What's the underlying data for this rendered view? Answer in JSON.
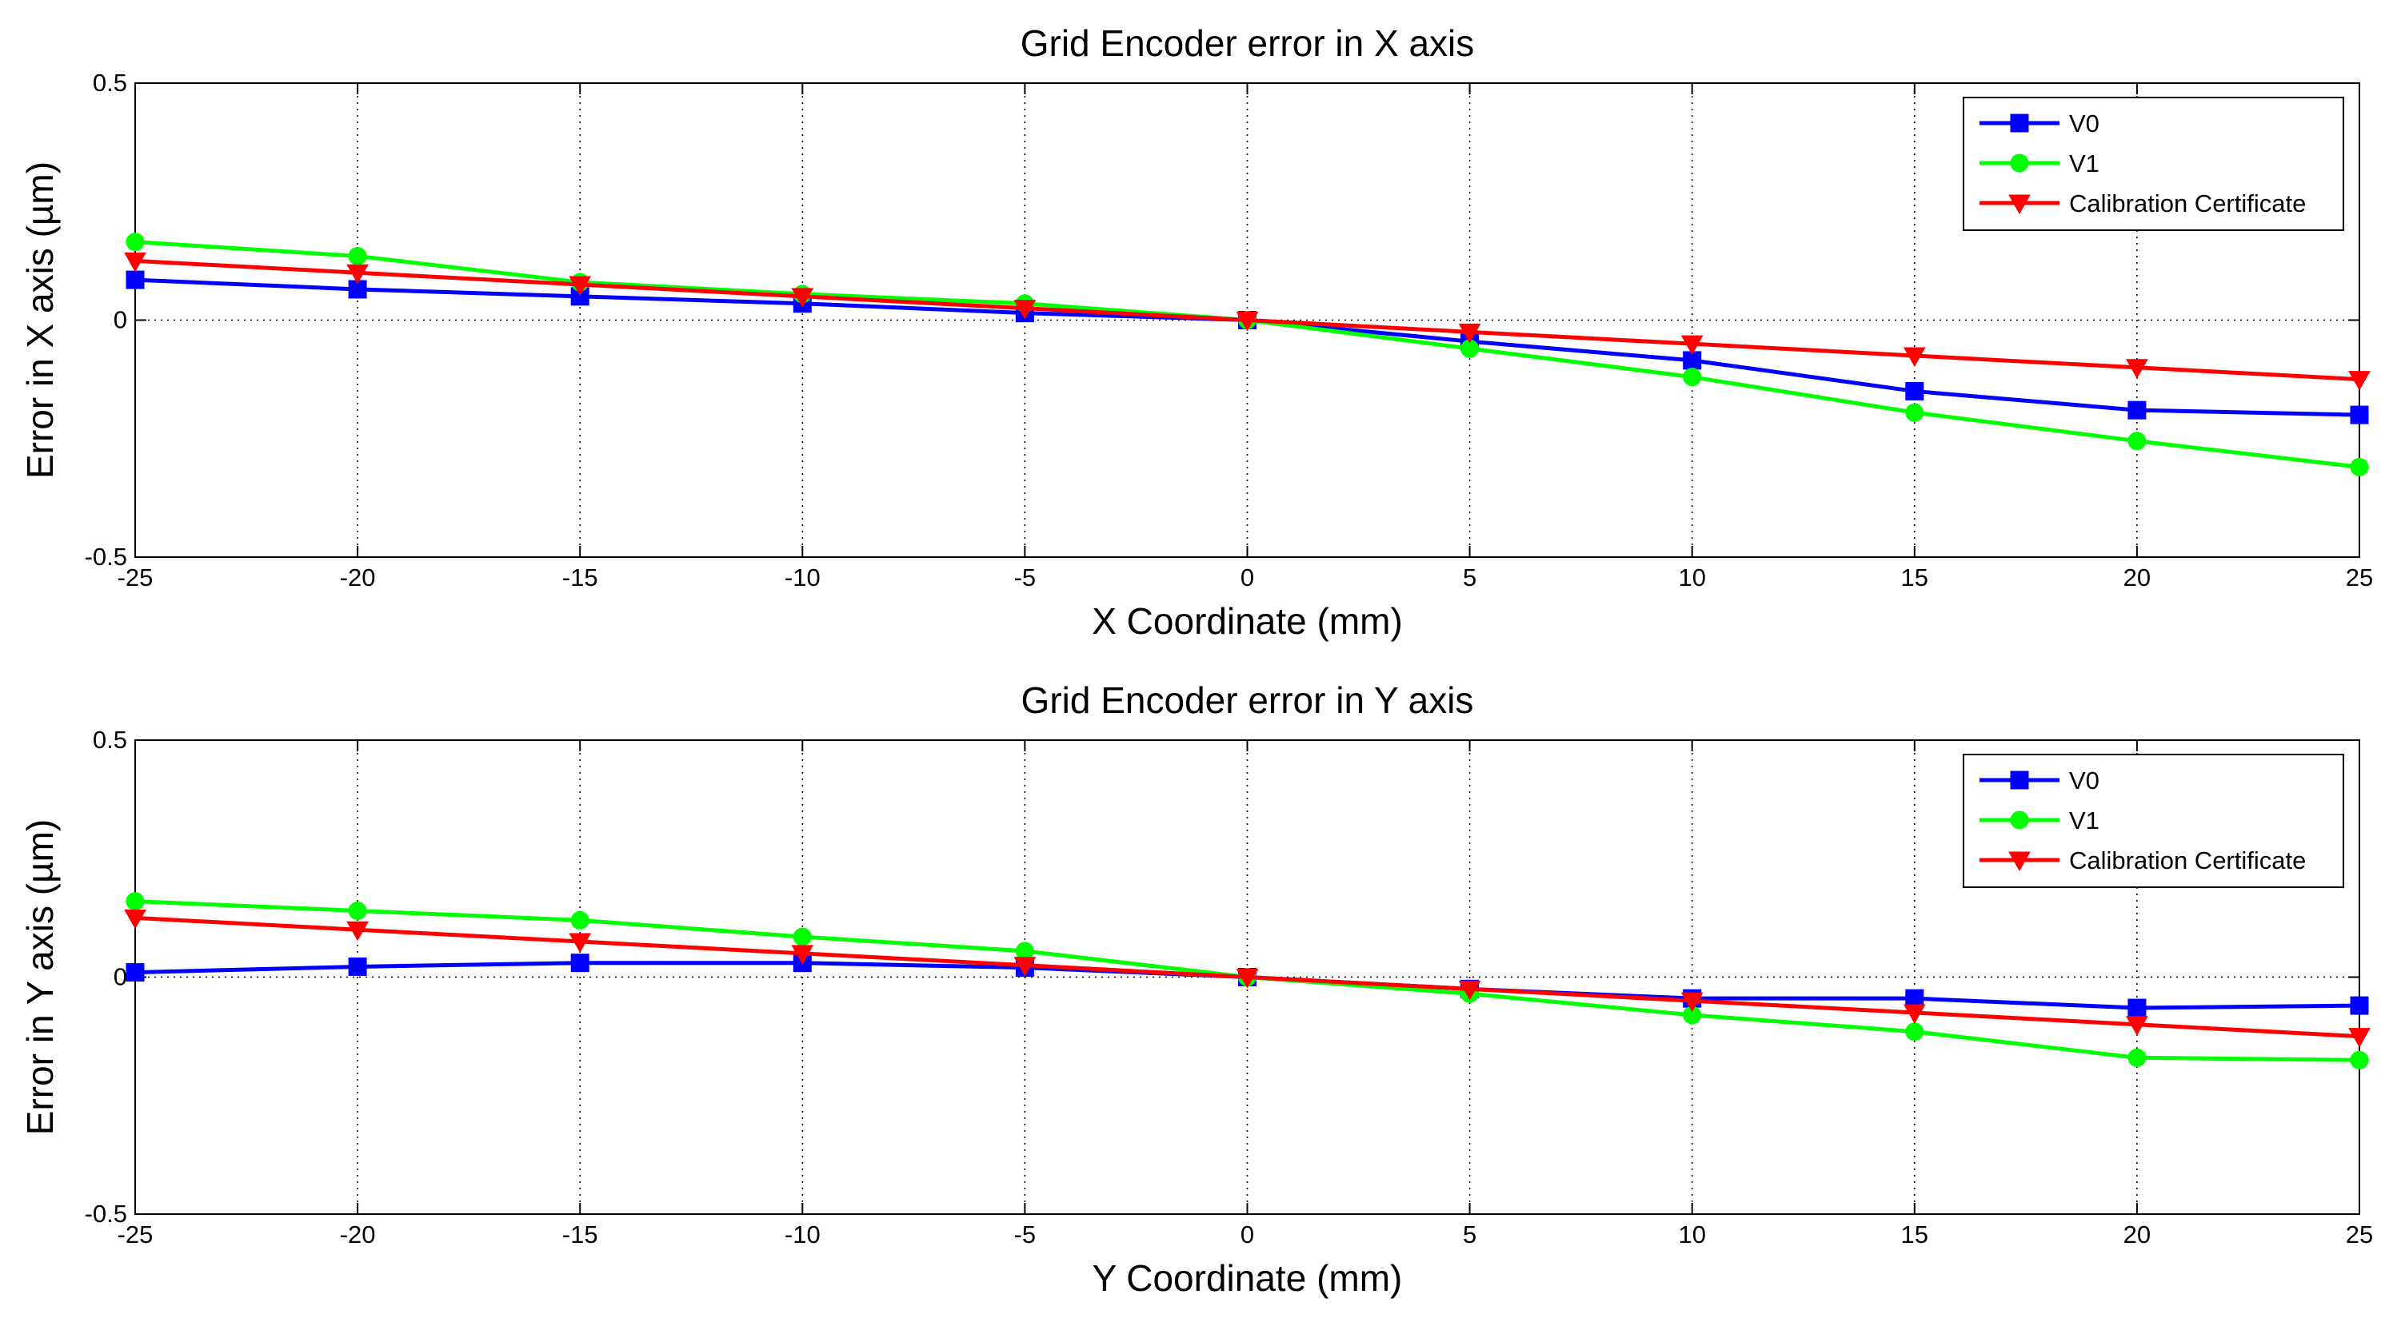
{
  "chart_data": [
    {
      "type": "line",
      "title": "Grid Encoder error in X axis",
      "xlabel": "X Coordinate (mm)",
      "ylabel": "Error in X axis (µm)",
      "xlim": [
        -25,
        25
      ],
      "ylim": [
        -0.5,
        0.5
      ],
      "xticks": [
        "-25",
        "-20",
        "-15",
        "-10",
        "-5",
        "0",
        "5",
        "10",
        "15",
        "20",
        "25"
      ],
      "yticks": [
        "0.5",
        "0",
        "-0.5"
      ],
      "grid": true,
      "legend_position": "top-right",
      "x": [
        -25,
        -20,
        -15,
        -10,
        -5,
        0,
        5,
        10,
        15,
        20,
        25
      ],
      "series": [
        {
          "name": "V0",
          "color": "#0000ff",
          "marker": "square",
          "values": [
            0.085,
            0.065,
            0.05,
            0.035,
            0.015,
            0.0,
            -0.045,
            -0.085,
            -0.15,
            -0.19,
            -0.2
          ]
        },
        {
          "name": "V1",
          "color": "#00ff00",
          "marker": "circle",
          "values": [
            0.165,
            0.135,
            0.08,
            0.055,
            0.035,
            0.0,
            -0.06,
            -0.12,
            -0.195,
            -0.255,
            -0.31
          ]
        },
        {
          "name": "Calibration Certificate",
          "color": "#ff0000",
          "marker": "triangle-down",
          "values": [
            0.125,
            0.1,
            0.075,
            0.05,
            0.025,
            0.0,
            -0.025,
            -0.05,
            -0.075,
            -0.1,
            -0.125
          ]
        }
      ]
    },
    {
      "type": "line",
      "title": "Grid Encoder error in Y axis",
      "xlabel": "Y Coordinate (mm)",
      "ylabel": "Error in Y axis (µm)",
      "xlim": [
        -25,
        25
      ],
      "ylim": [
        -0.5,
        0.5
      ],
      "xticks": [
        "-25",
        "-20",
        "-15",
        "-10",
        "-5",
        "0",
        "5",
        "10",
        "15",
        "20",
        "25"
      ],
      "yticks": [
        "0.5",
        "0",
        "-0.5"
      ],
      "grid": true,
      "legend_position": "top-right",
      "x": [
        -25,
        -20,
        -15,
        -10,
        -5,
        0,
        5,
        10,
        15,
        20,
        25
      ],
      "series": [
        {
          "name": "V0",
          "color": "#0000ff",
          "marker": "square",
          "values": [
            0.01,
            0.022,
            0.03,
            0.03,
            0.02,
            0.0,
            -0.025,
            -0.045,
            -0.045,
            -0.065,
            -0.06
          ]
        },
        {
          "name": "V1",
          "color": "#00ff00",
          "marker": "circle",
          "values": [
            0.16,
            0.14,
            0.12,
            0.085,
            0.055,
            0.0,
            -0.035,
            -0.08,
            -0.115,
            -0.17,
            -0.175
          ]
        },
        {
          "name": "Calibration Certificate",
          "color": "#ff0000",
          "marker": "triangle-down",
          "values": [
            0.125,
            0.1,
            0.075,
            0.05,
            0.025,
            0.0,
            -0.025,
            -0.05,
            -0.075,
            -0.1,
            -0.125
          ]
        }
      ]
    }
  ]
}
